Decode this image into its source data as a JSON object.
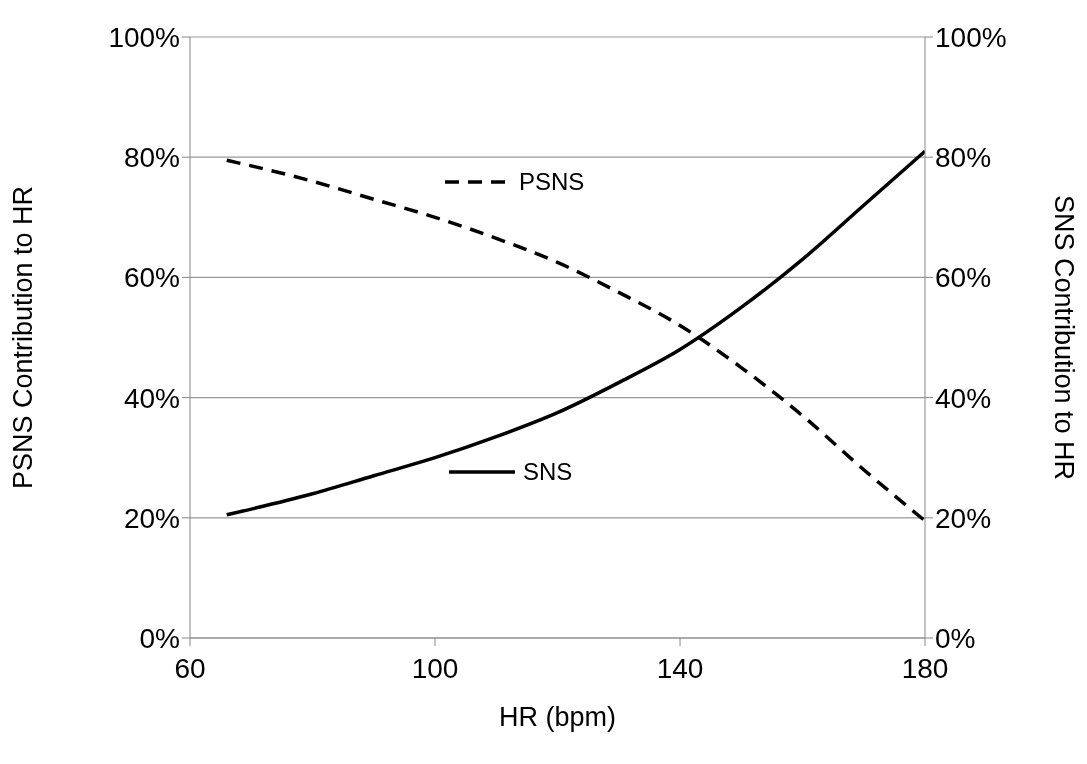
{
  "chart_data": {
    "type": "line",
    "xlabel": "HR (bpm)",
    "ylabel": "PSNS Contribution to HR",
    "y2label": "SNS Contribution to HR",
    "x": [
      66,
      80,
      90,
      100,
      110,
      120,
      130,
      140,
      150,
      160,
      170,
      180
    ],
    "series": [
      {
        "name": "PSNS",
        "color": "#000000",
        "line_style": "dashed",
        "values": [
          79.5,
          76,
          73,
          70,
          66.5,
          62.5,
          57.5,
          52,
          45,
          37,
          28,
          19.5
        ]
      },
      {
        "name": "SNS",
        "color": "#000000",
        "line_style": "solid",
        "values": [
          20.5,
          24,
          27,
          30,
          33.5,
          37.5,
          42.5,
          48,
          55,
          63,
          72,
          81
        ]
      }
    ],
    "xlim": [
      60,
      180
    ],
    "xticks": [
      60,
      100,
      140,
      180
    ],
    "ylim": [
      0,
      100
    ],
    "yticks": [
      {
        "value": 0,
        "label": "0%"
      },
      {
        "value": 20,
        "label": "20%"
      },
      {
        "value": 40,
        "label": "40%"
      },
      {
        "value": 60,
        "label": "60%"
      },
      {
        "value": 80,
        "label": "80%"
      },
      {
        "value": 100,
        "label": "100%"
      }
    ],
    "y2lim": [
      0,
      100
    ],
    "y2ticks": [
      {
        "value": 0,
        "label": "0%"
      },
      {
        "value": 20,
        "label": "20%"
      },
      {
        "value": 40,
        "label": "40%"
      },
      {
        "value": 60,
        "label": "60%"
      },
      {
        "value": 80,
        "label": "80%"
      },
      {
        "value": 100,
        "label": "100%"
      }
    ],
    "grid": "y",
    "legend": "center"
  }
}
